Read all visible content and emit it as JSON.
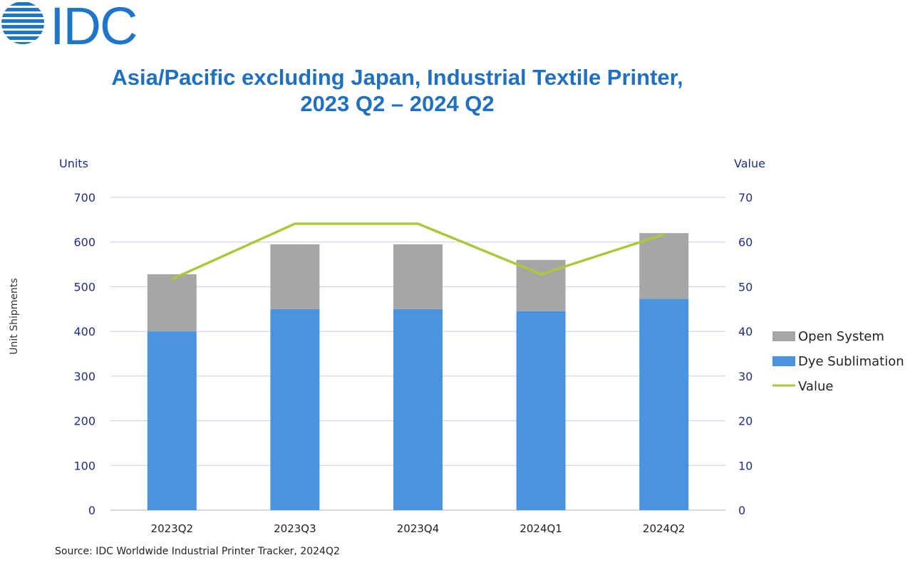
{
  "logo": {
    "text": "IDC",
    "color": "#1f76c9"
  },
  "title_line1": "Asia/Pacific excluding Japan, Industrial Textile Printer,",
  "title_line2": "2023 Q2 – 2024 Q2",
  "source": "Source: IDC Worldwide Industrial Printer Tracker, 2024Q2",
  "chart_data": {
    "type": "bar",
    "stacked": true,
    "categories": [
      "2023Q2",
      "2023Q3",
      "2023Q4",
      "2024Q1",
      "2024Q2"
    ],
    "series": [
      {
        "name": "Dye Sublimation",
        "axis": "left",
        "kind": "bar",
        "color": "#4a94df",
        "values": [
          400,
          450,
          450,
          445,
          473
        ]
      },
      {
        "name": "Open System",
        "axis": "left",
        "kind": "bar",
        "color": "#a6a6a6",
        "values": [
          128,
          145,
          145,
          115,
          147
        ]
      },
      {
        "name": "Value",
        "axis": "right",
        "kind": "line",
        "color": "#a8c93a",
        "values": [
          51.7,
          64.1,
          64.1,
          52.8,
          61.7
        ]
      }
    ],
    "left_axis": {
      "title": "Units",
      "label": "Unit Shipments",
      "ylim": [
        0,
        700
      ],
      "ticks": [
        "0",
        "100",
        "200",
        "300",
        "400",
        "500",
        "600",
        "700"
      ]
    },
    "right_axis": {
      "title": "Value",
      "ylim": [
        0,
        70
      ],
      "ticks": [
        "0",
        "10",
        "20",
        "30",
        "40",
        "50",
        "60",
        "70"
      ]
    },
    "legend": {
      "position": "right",
      "entries": [
        "Open System",
        "Dye Sublimation",
        "Value"
      ]
    },
    "grid": true
  }
}
